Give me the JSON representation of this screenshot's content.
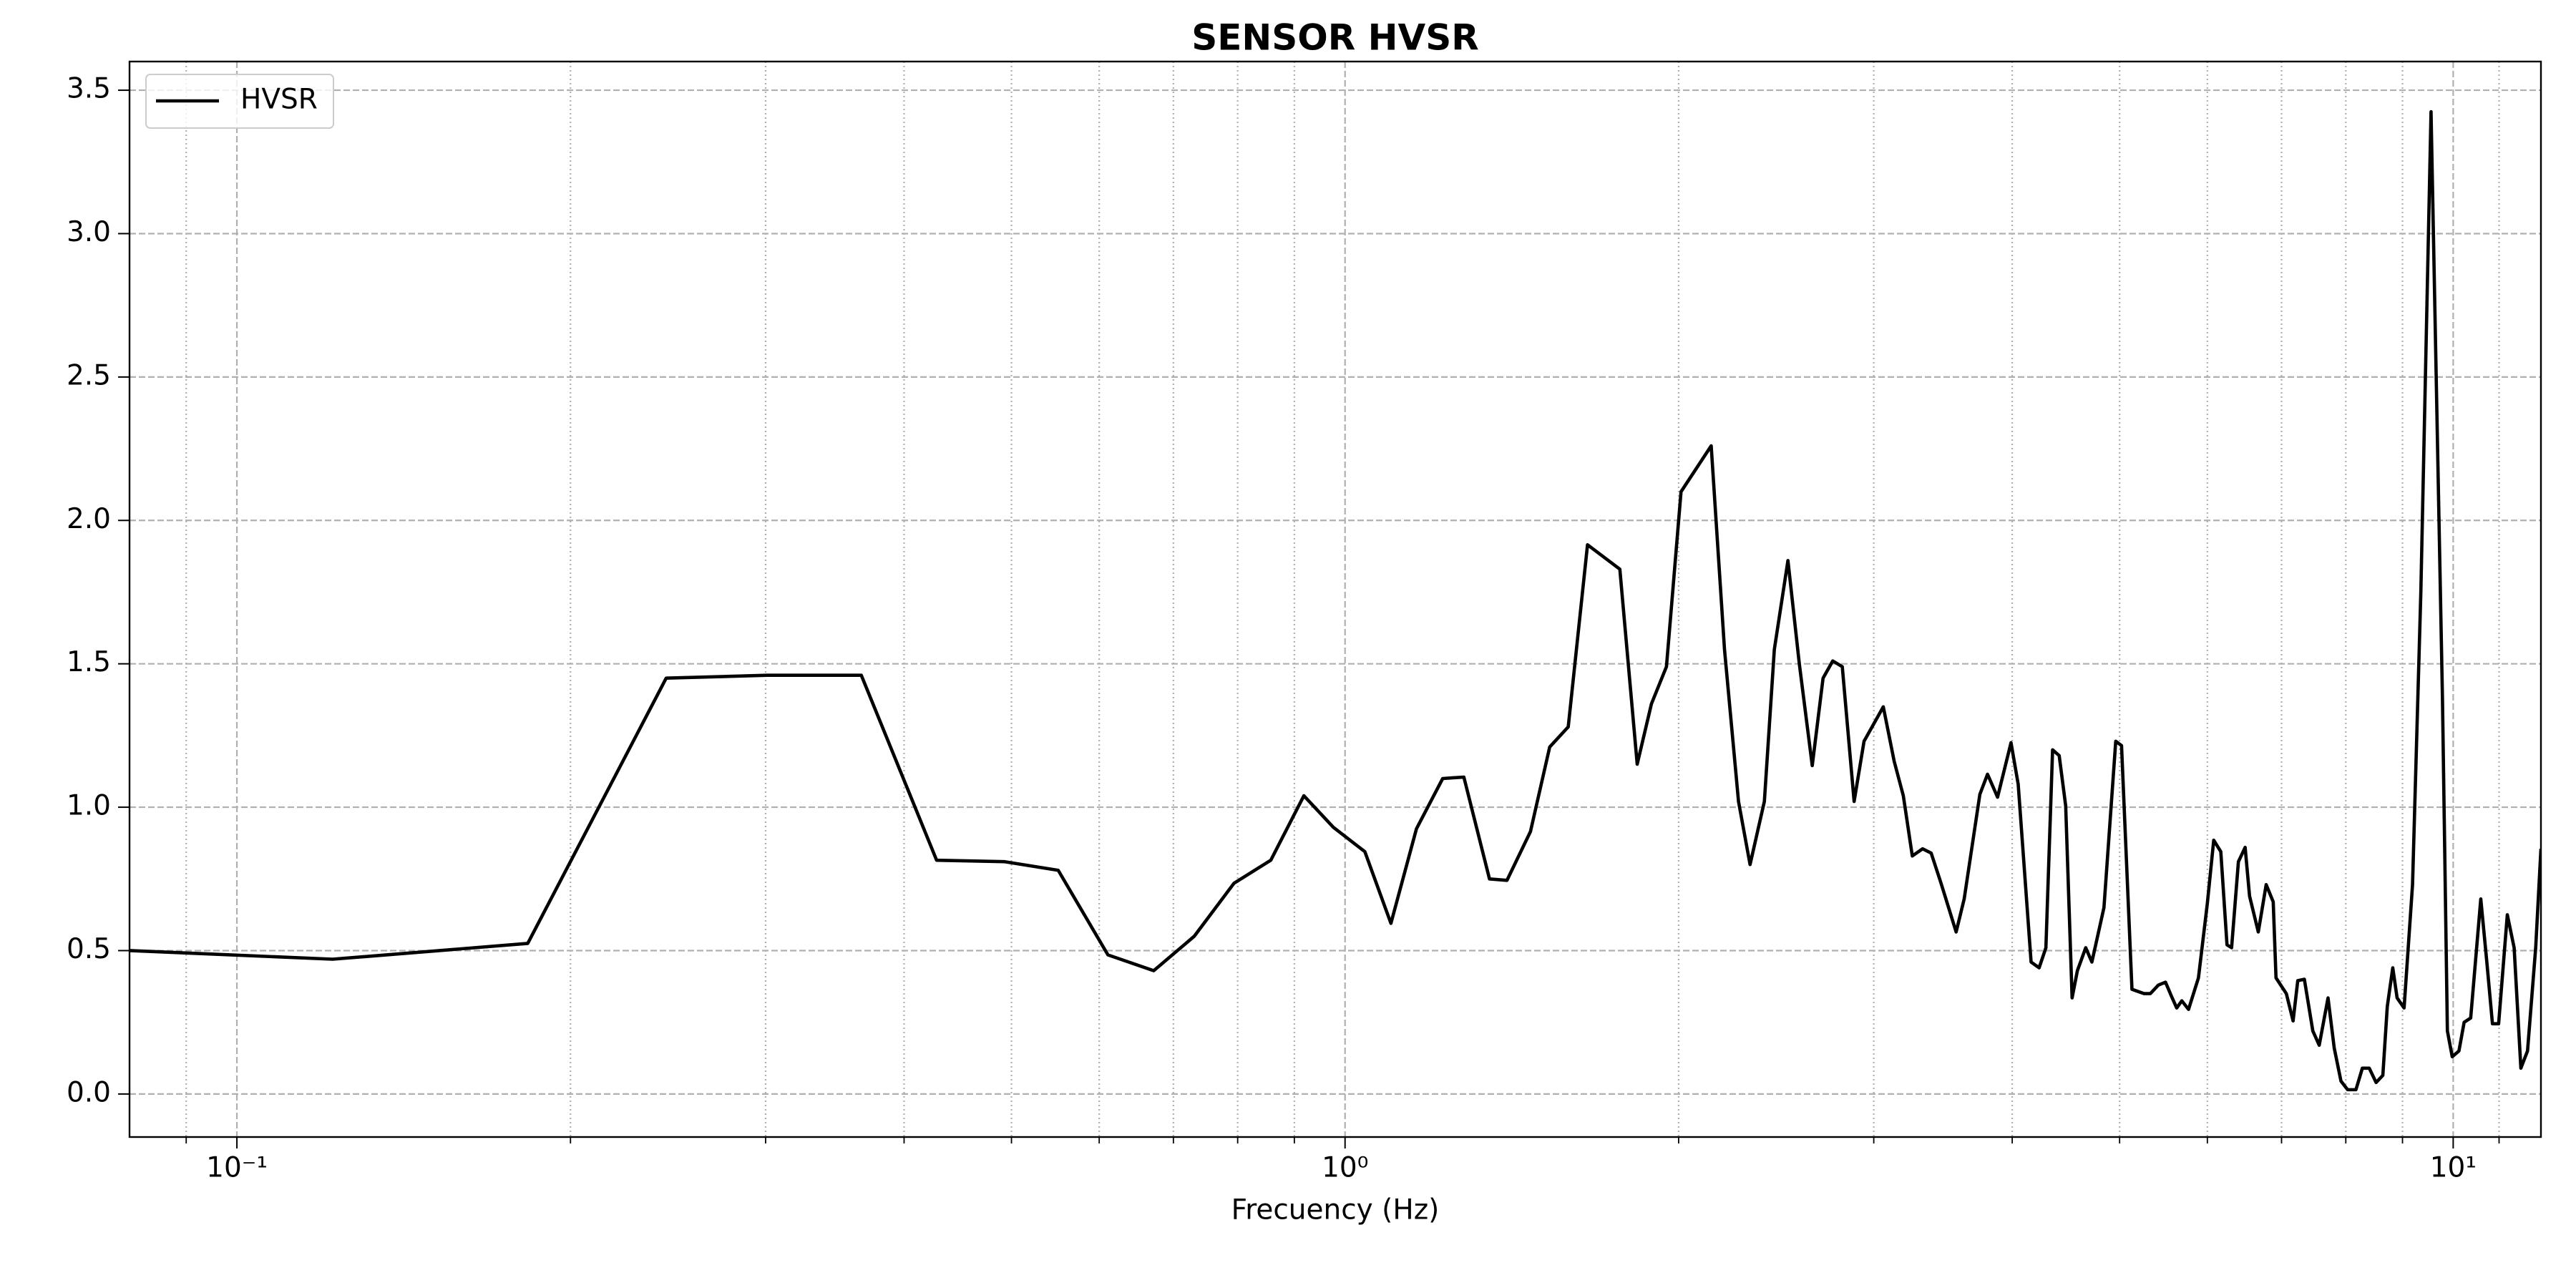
{
  "chart_data": {
    "type": "line",
    "title": "SENSOR HVSR",
    "xlabel": "Frecuency (Hz)",
    "xscale": "log",
    "grid": true,
    "legend": "upper left",
    "xlim": [
      0.08,
      12
    ],
    "ylim": [
      -0.15,
      3.6
    ],
    "xticks": [
      {
        "value": 0.1,
        "label": "10⁻¹"
      },
      {
        "value": 1,
        "label": "10⁰"
      },
      {
        "value": 10,
        "label": "10¹"
      }
    ],
    "xminorticks": [
      0.09,
      0.2,
      0.3,
      0.4,
      0.5,
      0.6,
      0.7,
      0.8,
      0.9,
      2,
      3,
      4,
      5,
      6,
      7,
      8,
      9,
      11
    ],
    "yticks": [
      {
        "value": 0,
        "label": "0.0"
      },
      0.5,
      {
        "value": 1,
        "label": "1.0"
      },
      1.5,
      {
        "value": 2,
        "label": "2.0"
      },
      2.5,
      {
        "value": 3,
        "label": "3.0"
      },
      3.5
    ],
    "x": [
      0.08,
      0.122,
      0.183,
      0.244,
      0.301,
      0.366,
      0.428,
      0.493,
      0.551,
      0.611,
      0.672,
      0.731,
      0.794,
      0.857,
      0.918,
      0.976,
      1.042,
      1.1,
      1.16,
      1.225,
      1.28,
      1.35,
      1.4,
      1.47,
      1.53,
      1.59,
      1.655,
      1.77,
      1.835,
      1.89,
      1.95,
      2.01,
      2.14,
      2.2,
      2.265,
      2.32,
      2.39,
      2.44,
      2.51,
      2.57,
      2.64,
      2.7,
      2.755,
      2.81,
      2.88,
      2.94,
      3.06,
      3.13,
      3.19,
      3.25,
      3.32,
      3.38,
      3.45,
      3.56,
      3.62,
      3.74,
      3.8,
      3.88,
      3.99,
      4.05,
      4.16,
      4.23,
      4.29,
      4.35,
      4.41,
      4.47,
      4.53,
      4.58,
      4.66,
      4.72,
      4.84,
      4.96,
      5.02,
      5.13,
      5.26,
      5.33,
      5.42,
      5.5,
      5.57,
      5.63,
      5.69,
      5.77,
      5.89,
      6.0,
      6.08,
      6.17,
      6.25,
      6.31,
      6.4,
      6.49,
      6.55,
      6.67,
      6.78,
      6.88,
      6.92,
      7.07,
      7.17,
      7.24,
      7.34,
      7.47,
      7.57,
      7.71,
      7.81,
      7.92,
      8.03,
      8.17,
      8.28,
      8.4,
      8.52,
      8.64,
      8.72,
      8.82,
      8.9,
      9.03,
      9.19,
      9.35,
      9.55,
      9.78,
      9.88,
      9.98,
      10.12,
      10.23,
      10.37,
      10.59,
      10.73,
      10.85,
      10.99,
      11.19,
      11.35,
      11.51,
      11.67,
      11.87,
      12.0
    ],
    "series": [
      {
        "name": "HVSR",
        "color": "#000000",
        "values": [
          0.5,
          0.47,
          0.525,
          1.45,
          1.46,
          1.46,
          0.815,
          0.81,
          0.78,
          0.485,
          0.43,
          0.55,
          0.735,
          0.815,
          1.04,
          0.93,
          0.845,
          0.595,
          0.925,
          1.1,
          1.105,
          0.75,
          0.745,
          0.915,
          1.21,
          1.28,
          1.915,
          1.83,
          1.15,
          1.36,
          1.49,
          2.1,
          2.26,
          1.55,
          1.02,
          0.8,
          1.02,
          1.55,
          1.86,
          1.5,
          1.145,
          1.45,
          1.51,
          1.49,
          1.02,
          1.23,
          1.35,
          1.16,
          1.04,
          0.83,
          0.855,
          0.84,
          0.735,
          0.565,
          0.68,
          1.045,
          1.115,
          1.035,
          1.225,
          1.08,
          0.46,
          0.44,
          0.51,
          1.2,
          1.18,
          1.005,
          0.335,
          0.43,
          0.51,
          0.46,
          0.65,
          1.23,
          1.215,
          0.365,
          0.35,
          0.35,
          0.38,
          0.39,
          0.34,
          0.3,
          0.325,
          0.295,
          0.405,
          0.665,
          0.885,
          0.845,
          0.52,
          0.51,
          0.81,
          0.86,
          0.69,
          0.565,
          0.73,
          0.67,
          0.405,
          0.35,
          0.255,
          0.395,
          0.4,
          0.22,
          0.17,
          0.335,
          0.16,
          0.045,
          0.015,
          0.015,
          0.09,
          0.09,
          0.04,
          0.065,
          0.305,
          0.44,
          0.335,
          0.3,
          0.73,
          1.75,
          3.425,
          1.375,
          0.22,
          0.13,
          0.15,
          0.25,
          0.265,
          0.68,
          0.45,
          0.245,
          0.245,
          0.625,
          0.51,
          0.09,
          0.15,
          0.51,
          0.855
        ]
      }
    ]
  }
}
